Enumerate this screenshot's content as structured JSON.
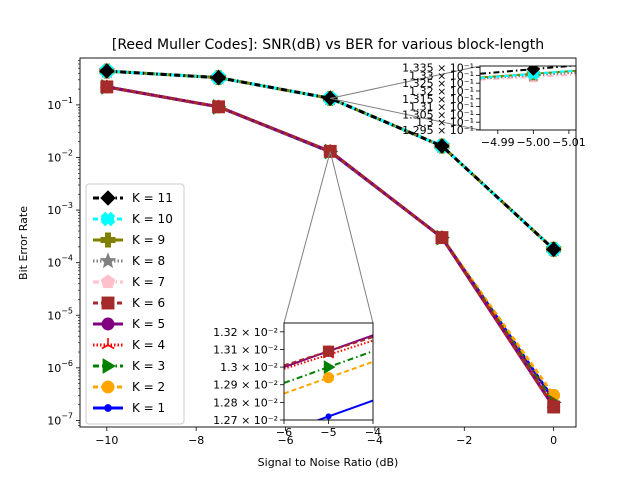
{
  "chart_data": {
    "type": "line",
    "title": "[Reed Muller Codes]: SNR(dB) vs BER for various block-length",
    "xlabel": "Signal to Noise Ratio (dB)",
    "ylabel": "Bit Error Rate",
    "x": [
      -10,
      -7.5,
      -5,
      -2.5,
      0
    ],
    "xlim": [
      -10.6,
      0.5
    ],
    "ylim": [
      7.5e-08,
      0.78
    ],
    "yscale": "log",
    "grid": false,
    "legend_position": "center-left",
    "xticks": [
      -10,
      -8,
      -6,
      -4,
      -2,
      0
    ],
    "xticklabels": [
      "−10",
      "−8",
      "−6",
      "−4",
      "−2",
      "0"
    ],
    "yticks": [
      1e-07,
      1e-06,
      1e-05,
      0.0001,
      0.001,
      0.01,
      0.1
    ],
    "ytick_base": "10",
    "ytick_exps": [
      "−7",
      "−6",
      "−5",
      "−4",
      "−3",
      "−2",
      "−1"
    ],
    "series": [
      {
        "name": "K = 11",
        "color": "#000000",
        "dash": "6,3,1.5,3",
        "marker": "D",
        "values": [
          0.44,
          0.33,
          0.1334,
          0.0165,
          0.00018
        ]
      },
      {
        "name": "K = 10",
        "color": "#00ffff",
        "dash": "5,3",
        "marker": "X",
        "values": [
          0.44,
          0.33,
          0.1331,
          0.0165,
          0.00018
        ]
      },
      {
        "name": "K = 9",
        "color": "#808000",
        "dash": "",
        "marker": "P",
        "values": [
          0.44,
          0.33,
          0.1331,
          0.0165,
          0.00018
        ]
      },
      {
        "name": "K = 8",
        "color": "#808080",
        "dash": "1.5,2",
        "marker": "*",
        "values": [
          0.44,
          0.33,
          0.133,
          0.0165,
          0.00018
        ]
      },
      {
        "name": "K = 7",
        "color": "#ffc0cb",
        "dash": "6,3,1.5,3",
        "marker": "p",
        "values": [
          0.44,
          0.33,
          0.1329,
          0.0165,
          0.00018
        ]
      },
      {
        "name": "K = 6",
        "color": "#a52a2a",
        "dash": "5,3",
        "marker": "s",
        "values": [
          0.22,
          0.092,
          0.01309,
          0.0003,
          1.8e-07
        ]
      },
      {
        "name": "K = 5",
        "color": "#800080",
        "dash": "",
        "marker": "o",
        "values": [
          0.22,
          0.092,
          0.01309,
          0.0003,
          1.8e-07
        ]
      },
      {
        "name": "K = 4",
        "color": "#ff0000",
        "dash": "1.5,2",
        "marker": "tri",
        "values": [
          0.22,
          0.092,
          0.01307,
          0.0003,
          2e-07
        ]
      },
      {
        "name": "K = 3",
        "color": "#008000",
        "dash": "6,3,1.5,3",
        "marker": ">",
        "values": [
          0.22,
          0.092,
          0.013,
          0.0003,
          2.2e-07
        ]
      },
      {
        "name": "K = 2",
        "color": "#ffa500",
        "dash": "5,3",
        "marker": "o",
        "values": [
          0.22,
          0.092,
          0.01294,
          0.0003,
          3e-07
        ]
      },
      {
        "name": "K = 1",
        "color": "#0000ff",
        "dash": "",
        "marker": "o",
        "values": [
          0.22,
          0.092,
          0.01272,
          0.0003,
          2.5e-07
        ]
      }
    ],
    "insets": [
      {
        "name": "upper",
        "xlim": [
          -4.985,
          -5.012
        ],
        "ylim": [
          0.1295,
          0.1336
        ],
        "xticks": [
          -4.99,
          -5.0,
          -5.01
        ],
        "xticklabels": [
          "−4.99",
          "−5.00",
          "−5.01"
        ],
        "yticks": [
          0.1295,
          0.13,
          0.1305,
          0.131,
          0.1315,
          0.132,
          0.1325,
          0.133,
          0.1335
        ],
        "yticklabels": [
          "1.295 × 10⁻¹",
          "1.3 × 10⁻¹",
          "1.305 × 10⁻¹",
          "1.31 × 10⁻¹",
          "1.315 × 10⁻¹",
          "1.32 × 10⁻¹",
          "1.325 × 10⁻¹",
          "1.33 × 10⁻¹",
          "1.335 × 10⁻¹"
        ],
        "series": [
          "K = 11",
          "K = 10",
          "K = 9",
          "K = 8",
          "K = 7"
        ]
      },
      {
        "name": "lower",
        "xlim": [
          -6,
          -4
        ],
        "ylim": [
          0.0127,
          0.01325
        ],
        "xticks": [
          -6,
          -5,
          -4
        ],
        "xticklabels": [
          "−6",
          "−5",
          "−4"
        ],
        "yticks": [
          0.0127,
          0.0128,
          0.0129,
          0.013,
          0.0131,
          0.0132
        ],
        "yticklabels": [
          "1.27 × 10⁻²",
          "1.28 × 10⁻²",
          "1.29 × 10⁻²",
          "1.3 × 10⁻²",
          "1.31 × 10⁻²",
          "1.32 × 10⁻²"
        ],
        "series": [
          "K = 6",
          "K = 5",
          "K = 4",
          "K = 3",
          "K = 2",
          "K = 1"
        ]
      }
    ]
  }
}
